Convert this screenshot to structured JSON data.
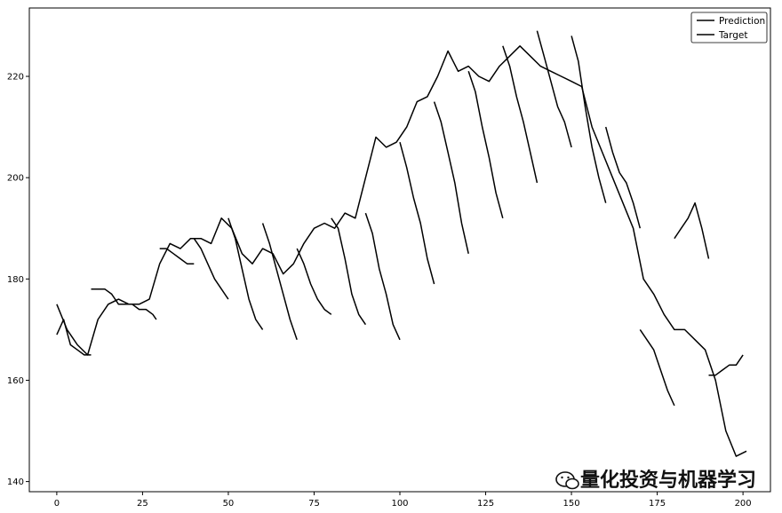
{
  "chart_data": {
    "type": "line",
    "title": "",
    "xlabel": "",
    "ylabel": "",
    "xlim": [
      -8,
      208
    ],
    "ylim": [
      138,
      233.5
    ],
    "xticks": [
      0,
      25,
      50,
      75,
      100,
      125,
      150,
      175,
      200
    ],
    "yticks": [
      140,
      160,
      180,
      200,
      220
    ],
    "grid": false,
    "legend": {
      "position": "top-right",
      "entries": [
        "Prediction",
        "Target"
      ]
    },
    "series": [
      {
        "name": "Target",
        "color": "#000000",
        "x": [
          0,
          3,
          6,
          9,
          12,
          15,
          18,
          21,
          24,
          27,
          30,
          33,
          36,
          39,
          42,
          45,
          48,
          51,
          54,
          57,
          60,
          63,
          66,
          69,
          72,
          75,
          78,
          81,
          84,
          87,
          90,
          93,
          96,
          99,
          102,
          105,
          108,
          111,
          114,
          117,
          120,
          123,
          126,
          129,
          132,
          135,
          138,
          141,
          144,
          147,
          150,
          153,
          156,
          159,
          162,
          165,
          168,
          171,
          174,
          177,
          180,
          183,
          186,
          189,
          192,
          195,
          198,
          201
        ],
        "y": [
          175,
          170,
          167,
          165,
          172,
          175,
          176,
          175,
          175,
          176,
          183,
          187,
          186,
          188,
          188,
          187,
          192,
          190,
          185,
          183,
          186,
          185,
          181,
          183,
          187,
          190,
          191,
          190,
          193,
          192,
          200,
          208,
          206,
          207,
          210,
          215,
          216,
          220,
          225,
          221,
          222,
          220,
          219,
          222,
          224,
          226,
          224,
          222,
          221,
          220,
          219,
          218,
          210,
          205,
          200,
          195,
          190,
          180,
          177,
          173,
          170,
          170,
          168,
          166,
          160,
          150,
          145,
          146
        ]
      },
      {
        "name": "Prediction",
        "color": "#000000",
        "segments": [
          {
            "x": [
              0,
              2,
              4,
              6,
              8,
              10
            ],
            "y": [
              169,
              172,
              167,
              166,
              165,
              165
            ]
          },
          {
            "x": [
              10,
              12,
              14,
              16,
              18,
              20,
              22,
              24,
              26,
              28,
              29
            ],
            "y": [
              178,
              178,
              178,
              177,
              175,
              175,
              175,
              174,
              174,
              173,
              172
            ]
          },
          {
            "x": [
              30,
              32,
              34,
              36,
              38,
              40
            ],
            "y": [
              186,
              186,
              185,
              184,
              183,
              183
            ]
          },
          {
            "x": [
              40,
              42,
              44,
              46,
              48,
              50
            ],
            "y": [
              188,
              186,
              183,
              180,
              178,
              176
            ]
          },
          {
            "x": [
              50,
              52,
              54,
              56,
              58,
              60
            ],
            "y": [
              192,
              188,
              182,
              176,
              172,
              170
            ]
          },
          {
            "x": [
              60,
              62,
              64,
              66,
              68,
              70
            ],
            "y": [
              191,
              187,
              182,
              177,
              172,
              168
            ]
          },
          {
            "x": [
              70,
              72,
              74,
              76,
              78,
              80
            ],
            "y": [
              186,
              183,
              179,
              176,
              174,
              173
            ]
          },
          {
            "x": [
              80,
              82,
              84,
              86,
              88,
              90
            ],
            "y": [
              192,
              190,
              184,
              177,
              173,
              171
            ]
          },
          {
            "x": [
              90,
              92,
              94,
              96,
              98,
              100
            ],
            "y": [
              193,
              189,
              182,
              177,
              171,
              168
            ]
          },
          {
            "x": [
              100,
              102,
              104,
              106,
              108,
              110
            ],
            "y": [
              207,
              202,
              196,
              191,
              184,
              179
            ]
          },
          {
            "x": [
              110,
              112,
              114,
              116,
              118,
              120
            ],
            "y": [
              215,
              211,
              205,
              199,
              191,
              185
            ]
          },
          {
            "x": [
              120,
              122,
              124,
              126,
              128,
              130
            ],
            "y": [
              221,
              217,
              210,
              204,
              197,
              192
            ]
          },
          {
            "x": [
              130,
              132,
              134,
              136,
              138,
              140
            ],
            "y": [
              226,
              222,
              216,
              211,
              205,
              199
            ]
          },
          {
            "x": [
              140,
              142,
              144,
              146,
              148,
              150
            ],
            "y": [
              229,
              224,
              219,
              214,
              211,
              206
            ]
          },
          {
            "x": [
              150,
              152,
              154,
              156,
              158,
              160
            ],
            "y": [
              228,
              223,
              214,
              206,
              200,
              195
            ]
          },
          {
            "x": [
              160,
              162,
              164,
              166,
              168,
              170
            ],
            "y": [
              210,
              205,
              201,
              199,
              195,
              190
            ]
          },
          {
            "x": [
              170,
              172,
              174,
              176,
              178,
              180
            ],
            "y": [
              170,
              168,
              166,
              162,
              158,
              155
            ]
          },
          {
            "x": [
              180,
              182,
              184,
              186,
              188,
              190
            ],
            "y": [
              188,
              190,
              192,
              195,
              190,
              184
            ]
          },
          {
            "x": [
              190,
              192,
              194,
              196,
              198,
              200
            ],
            "y": [
              161,
              161,
              162,
              163,
              163,
              165
            ]
          }
        ]
      }
    ]
  },
  "watermark": {
    "icon": "wechat-icon",
    "text": "量化投资与机器学习"
  }
}
